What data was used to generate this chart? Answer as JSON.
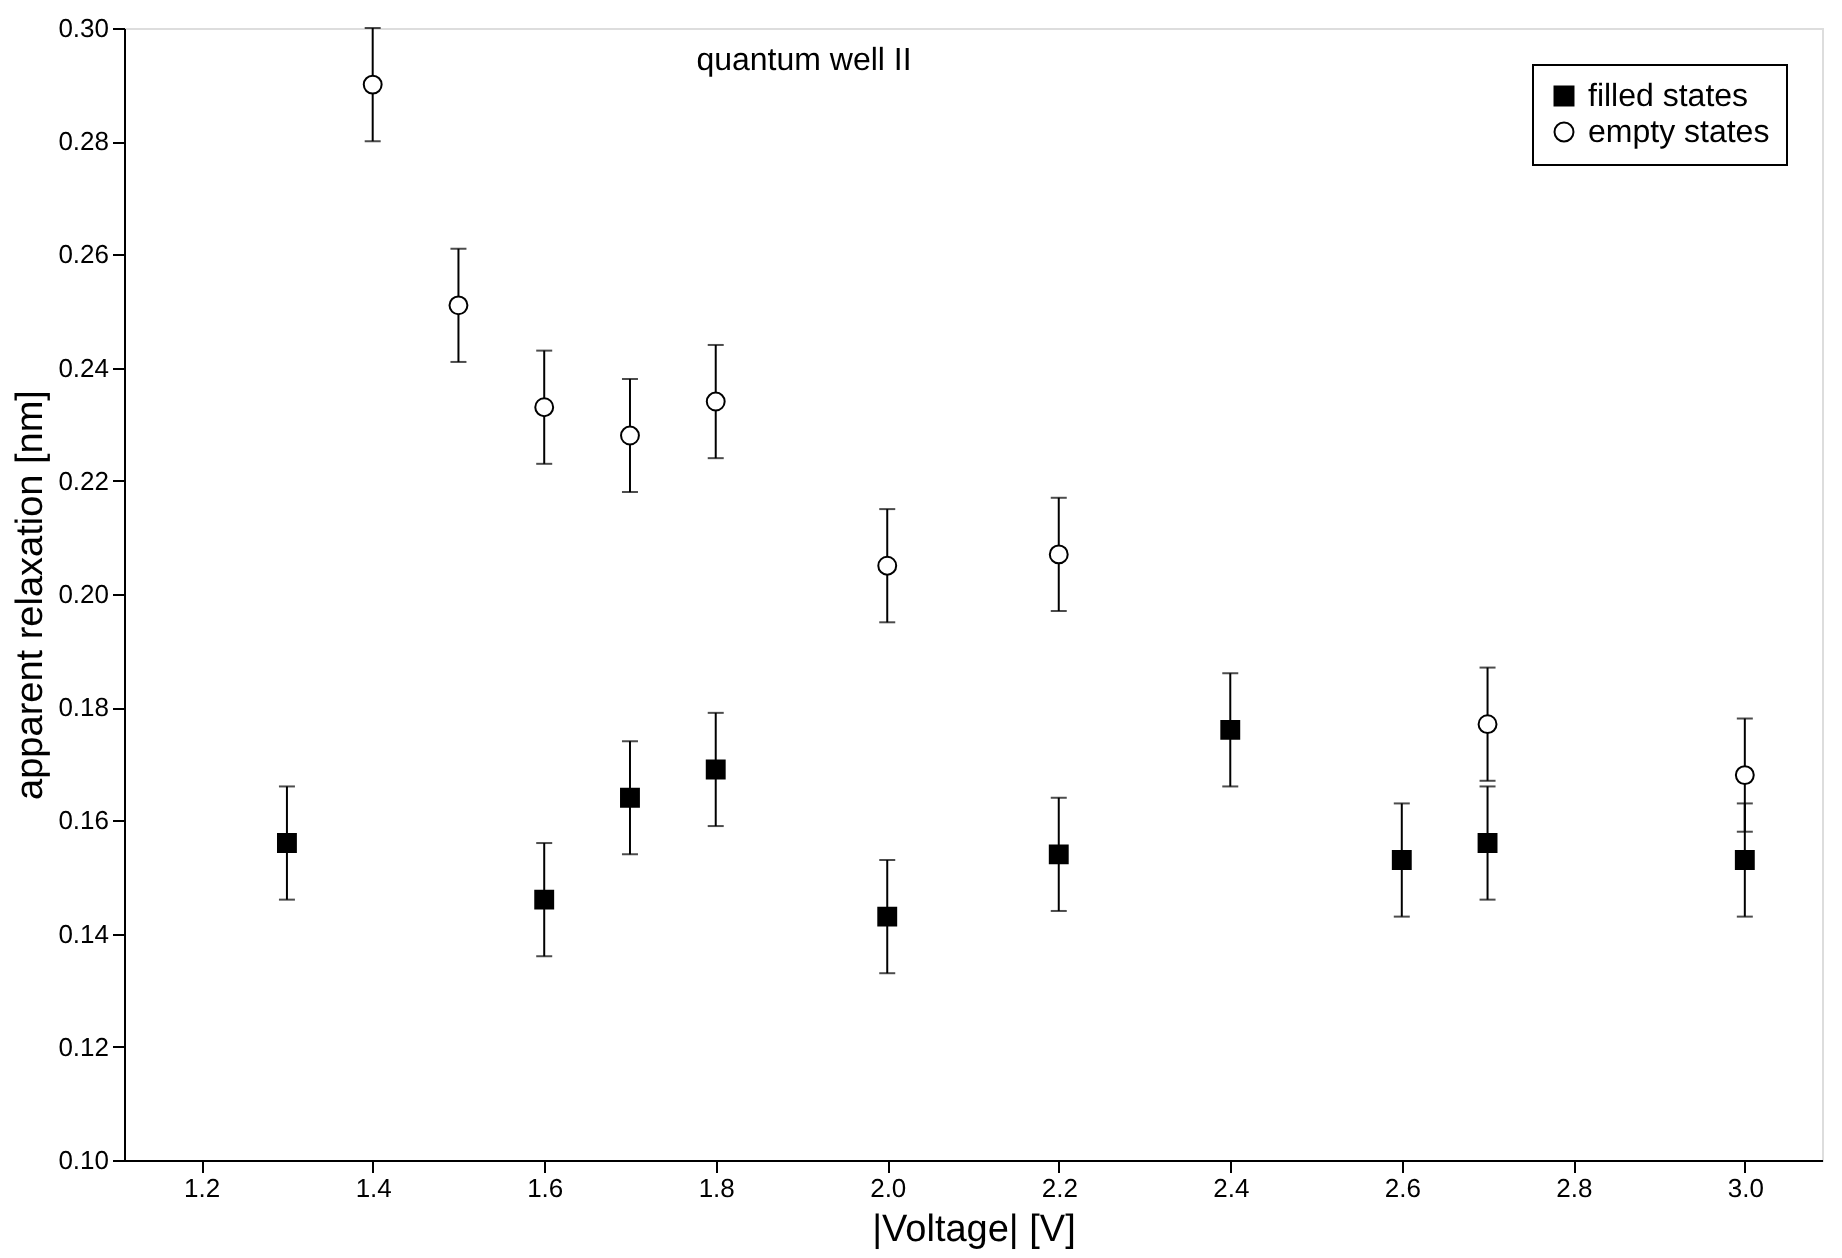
{
  "chart_data": {
    "type": "scatter",
    "xlabel": "|Voltage| [V]",
    "ylabel": "apparent relaxation [nm]",
    "annotations": [
      "quantum well II"
    ],
    "xlim": [
      1.11,
      3.09
    ],
    "xticks": [
      {
        "value": 1.2,
        "label": "1.2"
      },
      {
        "value": 1.4,
        "label": "1.4"
      },
      {
        "value": 1.6,
        "label": "1.6"
      },
      {
        "value": 1.8,
        "label": "1.8"
      },
      {
        "value": 2.0,
        "label": "2.0"
      },
      {
        "value": 2.2,
        "label": "2.2"
      },
      {
        "value": 2.4,
        "label": "2.4"
      },
      {
        "value": 2.6,
        "label": "2.6"
      },
      {
        "value": 2.8,
        "label": "2.8"
      },
      {
        "value": 3.0,
        "label": "3.0"
      }
    ],
    "ylim": [
      0.1,
      0.3
    ],
    "yticks": [
      {
        "value": 0.1,
        "label": "0.10"
      },
      {
        "value": 0.12,
        "label": "0.12"
      },
      {
        "value": 0.14,
        "label": "0.14"
      },
      {
        "value": 0.16,
        "label": "0.16"
      },
      {
        "value": 0.18,
        "label": "0.18"
      },
      {
        "value": 0.2,
        "label": "0.20"
      },
      {
        "value": 0.22,
        "label": "0.22"
      },
      {
        "value": 0.24,
        "label": "0.24"
      },
      {
        "value": 0.26,
        "label": "0.26"
      },
      {
        "value": 0.28,
        "label": "0.28"
      },
      {
        "value": 0.3,
        "label": "0.30"
      }
    ],
    "grid": false,
    "legend": "top right",
    "series": [
      {
        "name": "filled states",
        "color": "#000000",
        "marker": "square",
        "x": [
          1.3,
          1.6,
          1.7,
          1.8,
          2.0,
          2.2,
          2.4,
          2.6,
          2.7,
          3.0
        ],
        "values": [
          0.156,
          0.146,
          0.164,
          0.169,
          0.143,
          0.154,
          0.176,
          0.153,
          0.156,
          0.153
        ],
        "errors": [
          0.01,
          0.01,
          0.01,
          0.01,
          0.01,
          0.01,
          0.01,
          0.01,
          0.01,
          0.01
        ]
      },
      {
        "name": "empty states",
        "color": "#000000",
        "marker": "circle",
        "x": [
          1.4,
          1.5,
          1.6,
          1.7,
          1.8,
          2.0,
          2.2,
          2.7,
          3.0
        ],
        "values": [
          0.29,
          0.251,
          0.233,
          0.228,
          0.234,
          0.205,
          0.207,
          0.177,
          0.168
        ],
        "errors": [
          0.01,
          0.01,
          0.01,
          0.01,
          0.01,
          0.01,
          0.01,
          0.01,
          0.01
        ]
      }
    ]
  }
}
